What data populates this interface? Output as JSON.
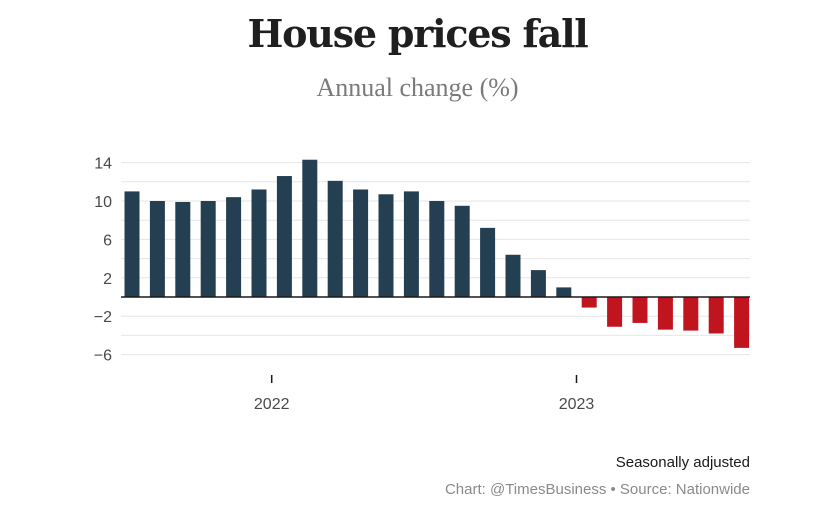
{
  "header": {
    "title": "House prices fall",
    "subtitle": "Annual change (%)"
  },
  "footer": {
    "note": "Seasonally adjusted",
    "credit": "Chart: @TimesBusiness • Source: Nationwide"
  },
  "colors": {
    "positive": "#243e52",
    "negative": "#c0141e",
    "gridline": "#e6e6e6",
    "zero_line": "#1a1a1a"
  },
  "chart_data": {
    "type": "bar",
    "title": "House prices fall",
    "subtitle": "Annual change (%)",
    "xlabel": "",
    "ylabel": "",
    "ylim": [
      -8,
      15
    ],
    "yticks": [
      -6,
      -2,
      2,
      6,
      10,
      14
    ],
    "ytick_labels": [
      "−6",
      "−2",
      "2",
      "6",
      "10",
      "14"
    ],
    "grid": true,
    "x_ticks": [
      {
        "label": "2022",
        "index": 5.5
      },
      {
        "label": "2023",
        "index": 17.5
      }
    ],
    "values": [
      11.0,
      10.0,
      9.9,
      10.0,
      10.4,
      11.2,
      12.6,
      14.3,
      12.1,
      11.2,
      10.7,
      11.0,
      10.0,
      9.5,
      7.2,
      4.4,
      2.8,
      1.0,
      -1.1,
      -3.1,
      -2.7,
      -3.4,
      -3.5,
      -3.8,
      -5.3
    ]
  }
}
